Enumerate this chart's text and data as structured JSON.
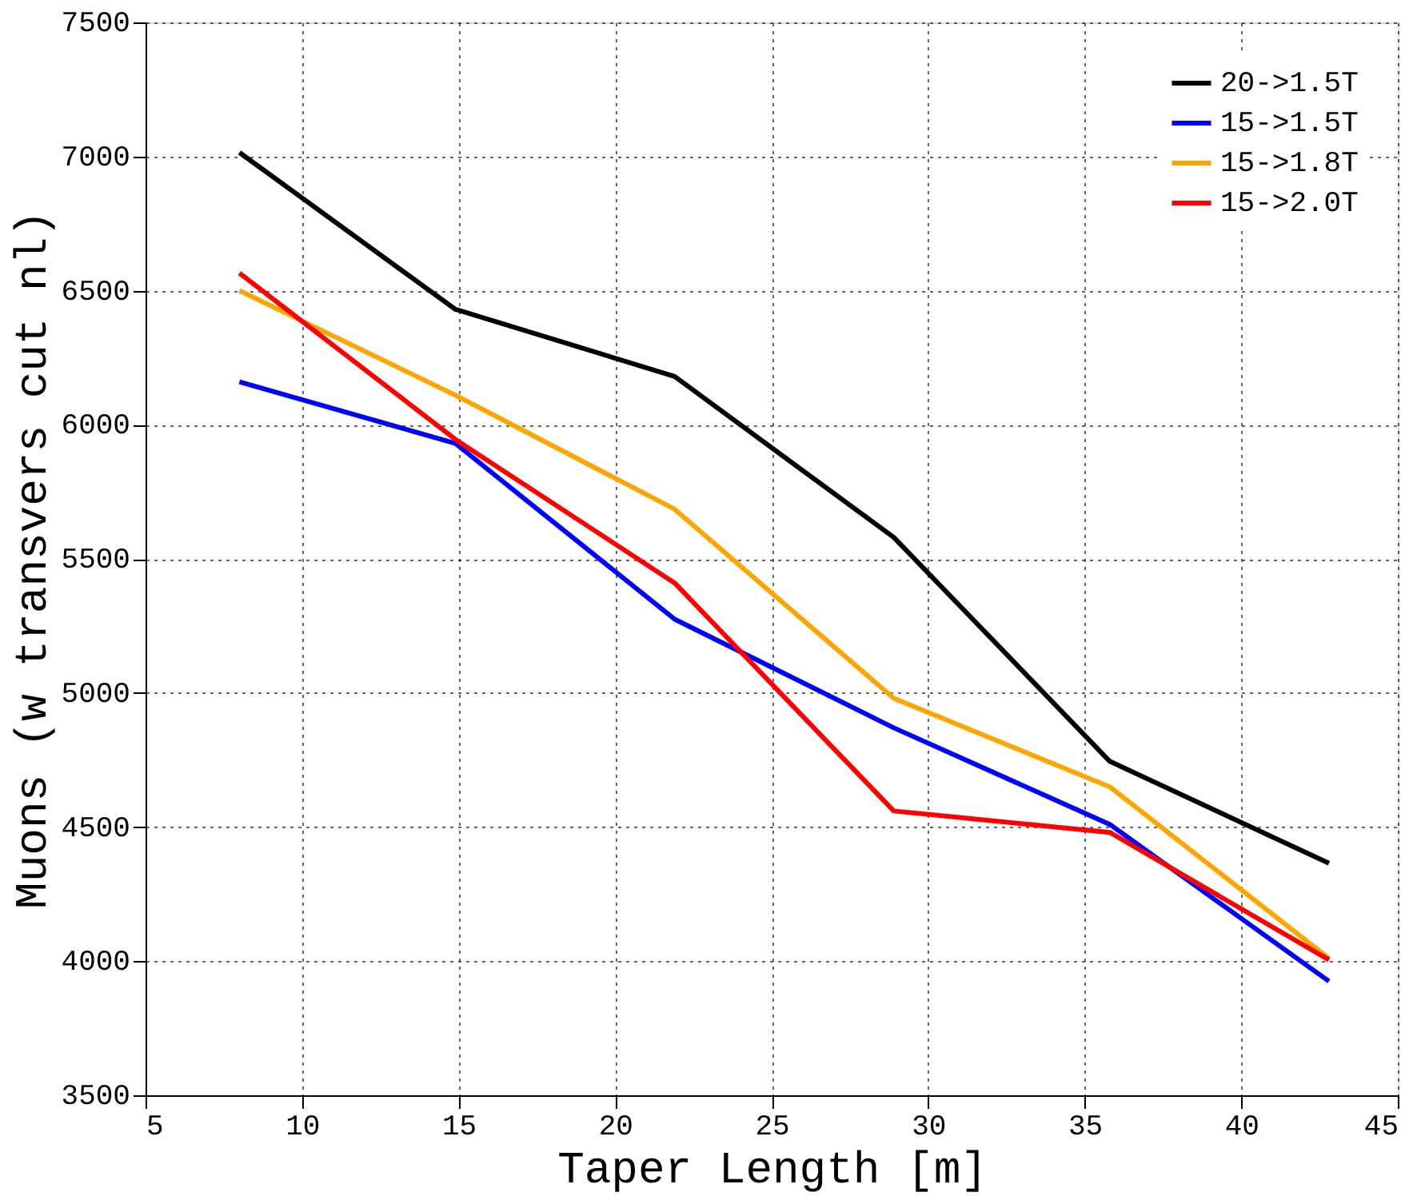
{
  "chart_data": {
    "type": "line",
    "xlabel": "Taper Length [m]",
    "ylabel": "Muons (w transvers cut nl)",
    "x": [
      8.0,
      14.9,
      21.9,
      28.9,
      35.8,
      42.8
    ],
    "series": [
      {
        "name": "20->1.5T",
        "color": "#000000",
        "values": [
          7015,
          6430,
          6180,
          5580,
          4745,
          4365
        ]
      },
      {
        "name": "15->1.5T",
        "color": "#0000ff",
        "values": [
          6160,
          5930,
          5275,
          4870,
          4510,
          3925
        ]
      },
      {
        "name": "15->1.8T",
        "color": "#ffa500",
        "values": [
          6500,
          6110,
          5685,
          4980,
          4650,
          4010
        ]
      },
      {
        "name": "15->2.0T",
        "color": "#ff0000",
        "values": [
          6565,
          5945,
          5410,
          4560,
          4480,
          4005
        ]
      }
    ],
    "xlim": [
      5,
      45
    ],
    "xticks": [
      5,
      10,
      15,
      20,
      25,
      30,
      35,
      40,
      45
    ],
    "ylim": [
      3500,
      7500
    ],
    "yticks": [
      3500,
      4000,
      4500,
      5000,
      5500,
      6000,
      6500,
      7000,
      7500
    ],
    "grid": true,
    "legend": "top right",
    "marker": "none",
    "line_style": "solid"
  }
}
